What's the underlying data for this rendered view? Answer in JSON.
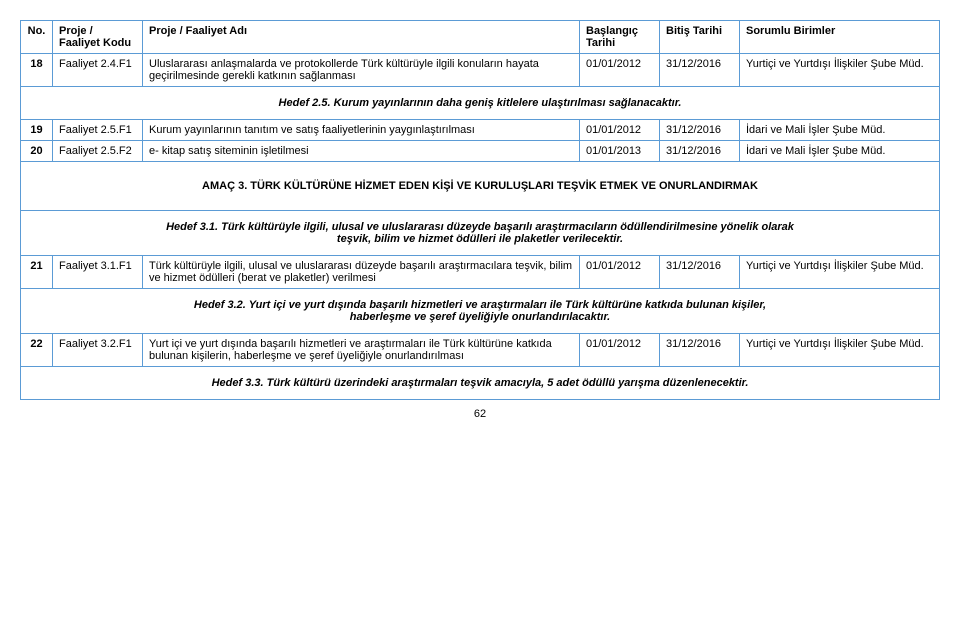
{
  "headers": {
    "no": "No.",
    "kodu": "Proje / Faaliyet Kodu",
    "adi": "Proje / Faaliyet Adı",
    "baslangic": "Başlangıç Tarihi",
    "bitis": "Bitiş Tarihi",
    "sorumlu": "Sorumlu Birimler"
  },
  "rows": {
    "r18": {
      "no": "18",
      "kodu": "Faaliyet 2.4.F1",
      "adi": "Uluslararası anlaşmalarda ve protokollerde Türk kültürüyle ilgili konuların hayata geçirilmesinde gerekli katkının sağlanması",
      "bas": "01/01/2012",
      "bit": "31/12/2016",
      "sor": "Yurtiçi ve Yurtdışı İlişkiler Şube Müd."
    },
    "hedef25": "Hedef 2.5. Kurum yayınlarının daha geniş kitlelere ulaştırılması sağlanacaktır.",
    "r19": {
      "no": "19",
      "kodu": "Faaliyet 2.5.F1",
      "adi": "Kurum yayınlarının tanıtım ve satış faaliyetlerinin yaygınlaştırılması",
      "bas": "01/01/2012",
      "bit": "31/12/2016",
      "sor": "İdari ve Mali İşler Şube Müd."
    },
    "r20": {
      "no": "20",
      "kodu": "Faaliyet 2.5.F2",
      "adi": "e- kitap satış siteminin işletilmesi",
      "bas": "01/01/2013",
      "bit": "31/12/2016",
      "sor": "İdari ve Mali İşler Şube Müd."
    },
    "amac3": "AMAÇ 3. TÜRK KÜLTÜRÜNE HİZMET EDEN KİŞİ VE KURULUŞLARI TEŞVİK ETMEK VE ONURLANDIRMAK",
    "hedef31_l1": "Hedef 3.1. Türk kültürüyle ilgili, ulusal ve uluslararası düzeyde başarılı araştırmacıların ödüllendirilmesine yönelik olarak",
    "hedef31_l2": "teşvik, bilim ve hizmet ödülleri ile plaketler verilecektir.",
    "r21": {
      "no": "21",
      "kodu": "Faaliyet 3.1.F1",
      "adi": "Türk kültürüyle ilgili, ulusal ve uluslararası düzeyde başarılı araştırmacılara teşvik, bilim ve hizmet ödülleri (berat ve plaketler) verilmesi",
      "bas": "01/01/2012",
      "bit": "31/12/2016",
      "sor": "Yurtiçi ve Yurtdışı İlişkiler Şube Müd."
    },
    "hedef32_l1": "Hedef 3.2. Yurt içi ve yurt dışında başarılı hizmetleri ve araştırmaları ile Türk kültürüne katkıda bulunan kişiler,",
    "hedef32_l2": "haberleşme ve şeref üyeliğiyle onurlandırılacaktır.",
    "r22": {
      "no": "22",
      "kodu": "Faaliyet 3.2.F1",
      "adi": "Yurt içi ve yurt dışında başarılı hizmetleri ve araştırmaları ile Türk kültürüne katkıda bulunan kişilerin, haberleşme ve şeref üyeliğiyle onurlandırılması",
      "bas": "01/01/2012",
      "bit": "31/12/2016",
      "sor": "Yurtiçi ve Yurtdışı İlişkiler Şube Müd."
    },
    "hedef33": "Hedef 3.3. Türk kültürü üzerindeki araştırmaları teşvik amacıyla, 5 adet ödüllü yarışma düzenlenecektir."
  },
  "page": "62"
}
